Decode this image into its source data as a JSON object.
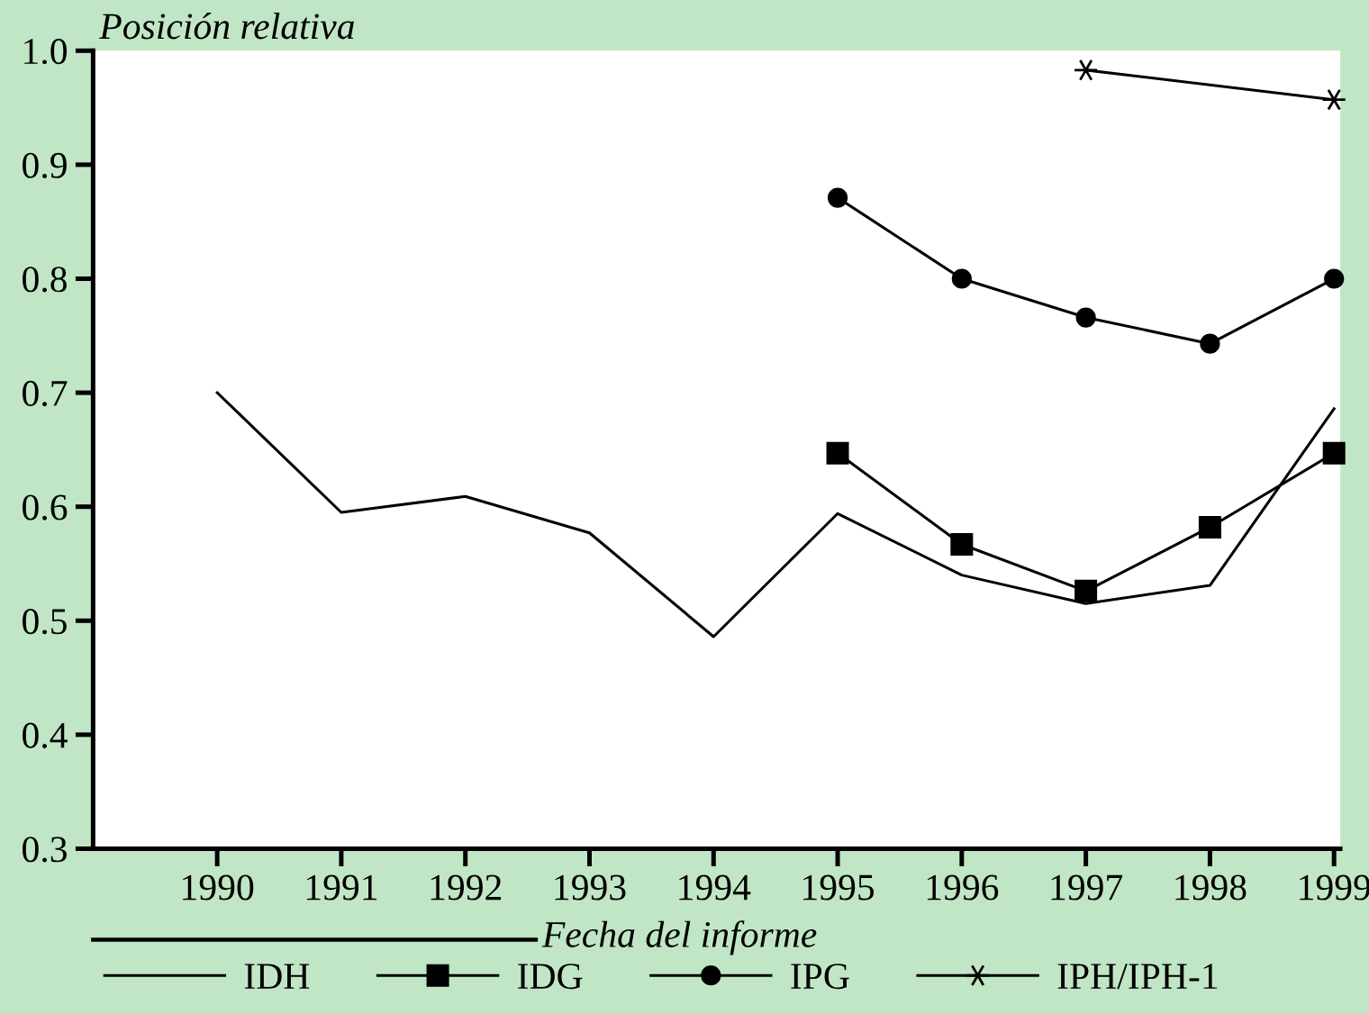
{
  "chart_data": {
    "type": "line",
    "ylabel": "Posición relativa",
    "xlabel": "Fecha del informe",
    "x": [
      1990,
      1991,
      1992,
      1993,
      1994,
      1995,
      1996,
      1997,
      1998,
      1999
    ],
    "xlim": [
      1989,
      1999.05
    ],
    "xticks": [
      1990,
      1991,
      1992,
      1993,
      1994,
      1995,
      1996,
      1997,
      1998,
      1999
    ],
    "ylim": [
      0.3,
      1.0
    ],
    "yticks": [
      0.3,
      0.4,
      0.5,
      0.6,
      0.7,
      0.8,
      0.9,
      {
        "value": 1.0,
        "label": "1.0"
      }
    ],
    "legend": "bottom",
    "series": [
      {
        "name": "IDH",
        "color": "#000000",
        "marker": "none",
        "values": [
          0.7,
          0.595,
          0.609,
          0.577,
          0.486,
          0.594,
          0.54,
          0.515,
          0.531,
          0.686
        ]
      },
      {
        "name": "IDG",
        "color": "#000000",
        "marker": "square",
        "values": [
          null,
          null,
          null,
          null,
          null,
          0.647,
          0.567,
          0.526,
          0.582,
          0.647
        ]
      },
      {
        "name": "IPG",
        "color": "#000000",
        "marker": "circle",
        "values": [
          null,
          null,
          null,
          null,
          null,
          0.871,
          0.8,
          0.766,
          0.743,
          0.8
        ]
      },
      {
        "name": "IPH/IPH-1",
        "color": "#000000",
        "marker": "cross",
        "x": [
          1997,
          1999
        ],
        "values": [
          0.983,
          0.957
        ]
      }
    ]
  }
}
